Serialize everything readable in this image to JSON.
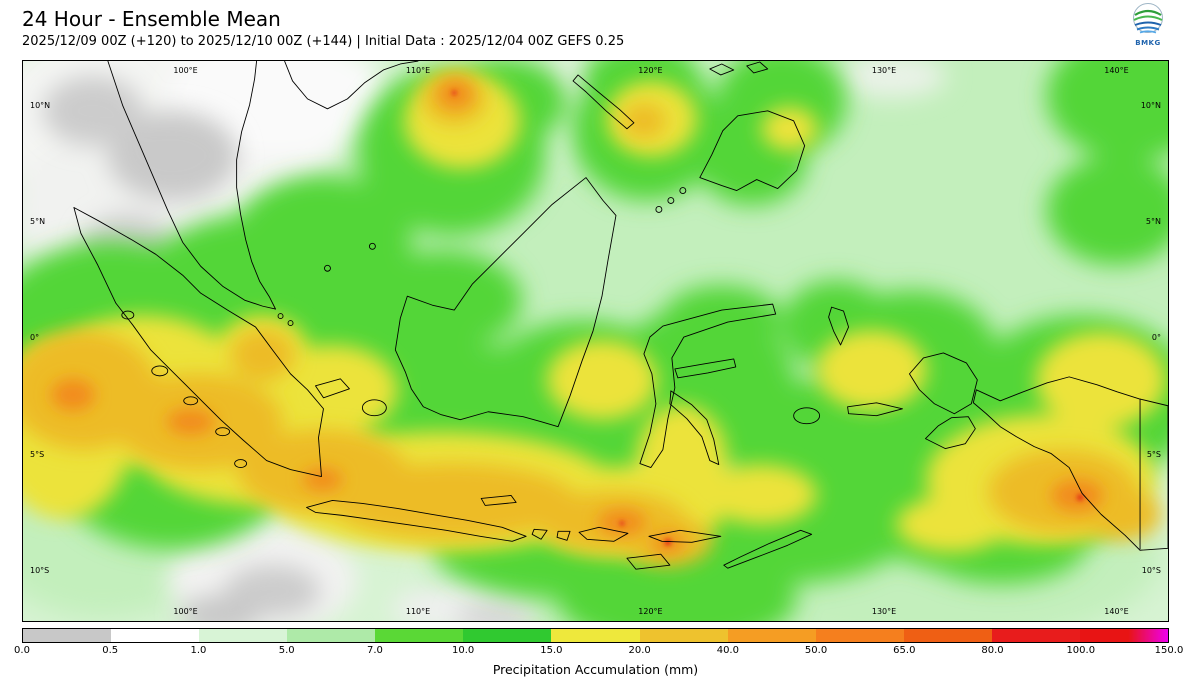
{
  "header": {
    "title": "24 Hour - Ensemble Mean",
    "subtitle": "2025/12/09 00Z (+120) to 2025/12/10 00Z (+144) | Initial Data : 2025/12/04 00Z GEFS 0.25",
    "logo_text": "BMKG"
  },
  "map": {
    "lon_labels": [
      "100°E",
      "110°E",
      "120°E",
      "130°E",
      "140°E"
    ],
    "lat_labels": [
      "10°N",
      "5°N",
      "0°",
      "5°S",
      "10°S"
    ]
  },
  "colorbar": {
    "label": "Precipitation Accumulation (mm)",
    "ticks": [
      "0.0",
      "0.5",
      "1.0",
      "5.0",
      "7.0",
      "10.0",
      "15.0",
      "20.0",
      "40.0",
      "50.0",
      "65.0",
      "80.0",
      "100.0",
      "150.0"
    ],
    "colors": [
      "#c8c8c8",
      "#ffffff",
      "#d8f4d6",
      "#aeeaa8",
      "#5ad836",
      "#30c930",
      "#eee83c",
      "#eec22e",
      "#f59d23",
      "#f57f1e",
      "#ef5f14",
      "#e81c1c",
      "#e81414"
    ],
    "end_color": "#ee00ee"
  }
}
